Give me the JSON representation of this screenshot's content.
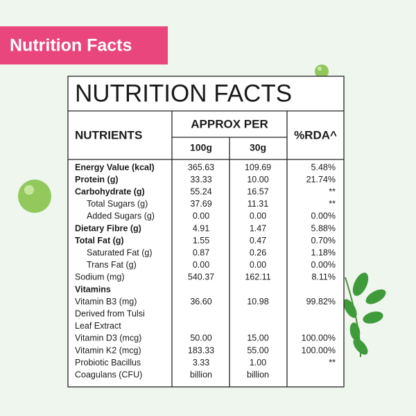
{
  "badge": "Nutrition Facts",
  "table": {
    "title": "NUTRITION FACTS",
    "headers": {
      "nutrients": "NUTRIENTS",
      "approx_per": "APPROX PER",
      "per100": "100g",
      "per30": "30g",
      "rda": "%RDA^"
    },
    "rows": [
      {
        "label": "Energy Value (kcal)",
        "per100": "365.63",
        "per30": "109.69",
        "rda": "5.48%",
        "style": "bold"
      },
      {
        "label": "Protein (g)",
        "per100": "33.33",
        "per30": "10.00",
        "rda": "21.74%",
        "style": "bold"
      },
      {
        "label": "Carbohydrate (g)",
        "per100": "55.24",
        "per30": "16.57",
        "rda": "**",
        "style": "bold"
      },
      {
        "label": "Total Sugars (g)",
        "per100": "37.69",
        "per30": "11.31",
        "rda": "**",
        "style": "indent"
      },
      {
        "label": "Added Sugars (g)",
        "per100": "0.00",
        "per30": "0.00",
        "rda": "0.00%",
        "style": "indent"
      },
      {
        "label": "Dietary Fibre (g)",
        "per100": "4.91",
        "per30": "1.47",
        "rda": "5.88%",
        "style": "bold"
      },
      {
        "label": "Total Fat (g)",
        "per100": "1.55",
        "per30": "0.47",
        "rda": "0.70%",
        "style": "bold"
      },
      {
        "label": "Saturated Fat (g)",
        "per100": "0.87",
        "per30": "0.26",
        "rda": "1.18%",
        "style": "indent"
      },
      {
        "label": "Trans Fat (g)",
        "per100": "0.00",
        "per30": "0.00",
        "rda": "0.00%",
        "style": "indent"
      },
      {
        "label": "Sodium (mg)",
        "per100": "540.37",
        "per30": "162.11",
        "rda": "8.11%"
      },
      {
        "label": "Vitamins",
        "style": "bold"
      },
      {
        "label": "Vitamin B3 (mg)",
        "per100": "36.60",
        "per30": "10.98",
        "rda": "99.82%"
      },
      {
        "label": "Derived from Tulsi"
      },
      {
        "label": "Leaf Extract"
      },
      {
        "label": "Vitamin D3 (mcg)",
        "per100": "50.00",
        "per30": "15.00",
        "rda": "100.00%"
      },
      {
        "label": "Vitamin K2 (mcg)",
        "per100": "183.33",
        "per30": "55.00",
        "rda": "100.00%"
      },
      {
        "label": "Probiotic Bacillus",
        "per100": "3.33",
        "per30": "1.00",
        "rda": "**"
      },
      {
        "label": "Coagulans (CFU)",
        "per100": "billion",
        "per30": "billion"
      }
    ]
  }
}
